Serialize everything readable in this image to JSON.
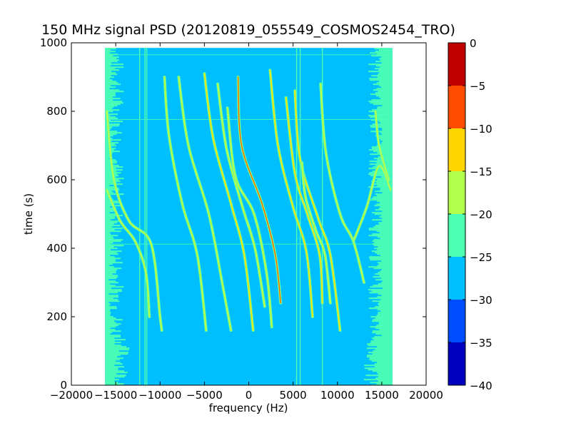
{
  "chart_data": {
    "type": "heatmap",
    "title": "150 MHz signal PSD (20120819_055549_COSMOS2454_TRO)",
    "xlabel": "frequency (Hz)",
    "ylabel": "time (s)",
    "xlim": [
      -20000,
      20000
    ],
    "ylim": [
      0,
      1000
    ],
    "x_ticks": [
      -20000,
      -15000,
      -10000,
      -5000,
      0,
      5000,
      10000,
      15000,
      20000
    ],
    "y_ticks": [
      0,
      200,
      400,
      600,
      800,
      1000
    ],
    "data_extent": {
      "x": [
        -16200,
        16200
      ],
      "y": [
        0,
        985
      ]
    },
    "background_level": -27.5,
    "edge_level": -22.5,
    "vertical_lines_hz": [
      -16000,
      -12300,
      -11700,
      -11500,
      5400,
      5800,
      8300
    ],
    "horizontal_lines_s": [
      412,
      776,
      965
    ],
    "colorbar": {
      "label": "",
      "range": [
        -40,
        0
      ],
      "ticks": [
        0,
        -5,
        -10,
        -15,
        -20,
        -25,
        -30,
        -35,
        -40
      ],
      "bands": [
        {
          "from": -40,
          "to": -35,
          "color": "#0000bf"
        },
        {
          "from": -35,
          "to": -30,
          "color": "#004cff"
        },
        {
          "from": -30,
          "to": -25,
          "color": "#00bfff"
        },
        {
          "from": -25,
          "to": -20,
          "color": "#4dffb2"
        },
        {
          "from": -20,
          "to": -15,
          "color": "#b2ff4d"
        },
        {
          "from": -15,
          "to": -10,
          "color": "#ffd700"
        },
        {
          "from": -10,
          "to": -5,
          "color": "#ff4c00"
        },
        {
          "from": -5,
          "to": 0,
          "color": "#bf0000"
        }
      ]
    },
    "series": [
      {
        "points": [
          [
            -16000,
            800
          ],
          [
            -15200,
            600
          ],
          [
            -13500,
            480
          ],
          [
            -11000,
            412
          ],
          [
            -10000,
            200
          ],
          [
            -9800,
            160
          ]
        ],
        "level": -17.5
      },
      {
        "points": [
          [
            -16000,
            570
          ],
          [
            -14500,
            480
          ],
          [
            -12800,
            420
          ],
          [
            -11600,
            330
          ],
          [
            -11200,
            200
          ]
        ],
        "level": -17.5
      },
      {
        "points": [
          [
            -9500,
            900
          ],
          [
            -9000,
            730
          ],
          [
            -7500,
            530
          ],
          [
            -5800,
            380
          ],
          [
            -4800,
            160
          ]
        ],
        "level": -17.5
      },
      {
        "points": [
          [
            -7900,
            900
          ],
          [
            -6800,
            700
          ],
          [
            -4500,
            500
          ],
          [
            -3000,
            300
          ],
          [
            -2000,
            160
          ]
        ],
        "level": -17.5
      },
      {
        "points": [
          [
            -5000,
            910
          ],
          [
            -4000,
            720
          ],
          [
            -2000,
            530
          ],
          [
            -500,
            380
          ],
          [
            500,
            160
          ]
        ],
        "level": -12.5
      },
      {
        "points": [
          [
            -3500,
            880
          ],
          [
            -2500,
            690
          ],
          [
            -700,
            520
          ],
          [
            700,
            400
          ],
          [
            1800,
            230
          ]
        ],
        "level": -17.5
      },
      {
        "points": [
          [
            -1200,
            900
          ],
          [
            -800,
            700
          ],
          [
            1500,
            530
          ],
          [
            3000,
            380
          ],
          [
            3600,
            240
          ]
        ],
        "level": -7.5
      },
      {
        "points": [
          [
            -2400,
            810
          ],
          [
            -1500,
            610
          ],
          [
            600,
            500
          ],
          [
            2000,
            330
          ],
          [
            2600,
            170
          ]
        ],
        "level": -17.5
      },
      {
        "points": [
          [
            2400,
            920
          ],
          [
            3300,
            700
          ],
          [
            5000,
            520
          ],
          [
            6500,
            390
          ],
          [
            7200,
            200
          ]
        ],
        "level": -12.5
      },
      {
        "points": [
          [
            4200,
            840
          ],
          [
            5200,
            620
          ],
          [
            6600,
            500
          ],
          [
            8000,
            380
          ],
          [
            8300,
            240
          ]
        ],
        "level": -12.5
      },
      {
        "points": [
          [
            5200,
            860
          ],
          [
            5800,
            660
          ],
          [
            7800,
            490
          ],
          [
            9200,
            380
          ],
          [
            10300,
            160
          ]
        ],
        "level": -12.5
      },
      {
        "points": [
          [
            8100,
            880
          ],
          [
            8700,
            680
          ],
          [
            10300,
            500
          ],
          [
            11800,
            420
          ],
          [
            13000,
            300
          ]
        ],
        "level": -17.5
      },
      {
        "points": [
          [
            6000,
            650
          ],
          [
            6400,
            550
          ],
          [
            7600,
            450
          ],
          [
            8600,
            380
          ],
          [
            9200,
            240
          ]
        ],
        "level": -17.5
      },
      {
        "points": [
          [
            11800,
            420
          ],
          [
            13300,
            520
          ],
          [
            14700,
            640
          ],
          [
            16000,
            570
          ]
        ],
        "level": -17.5
      },
      {
        "points": [
          [
            14300,
            800
          ],
          [
            14700,
            700
          ],
          [
            15800,
            600
          ]
        ],
        "level": -17.5
      }
    ]
  }
}
